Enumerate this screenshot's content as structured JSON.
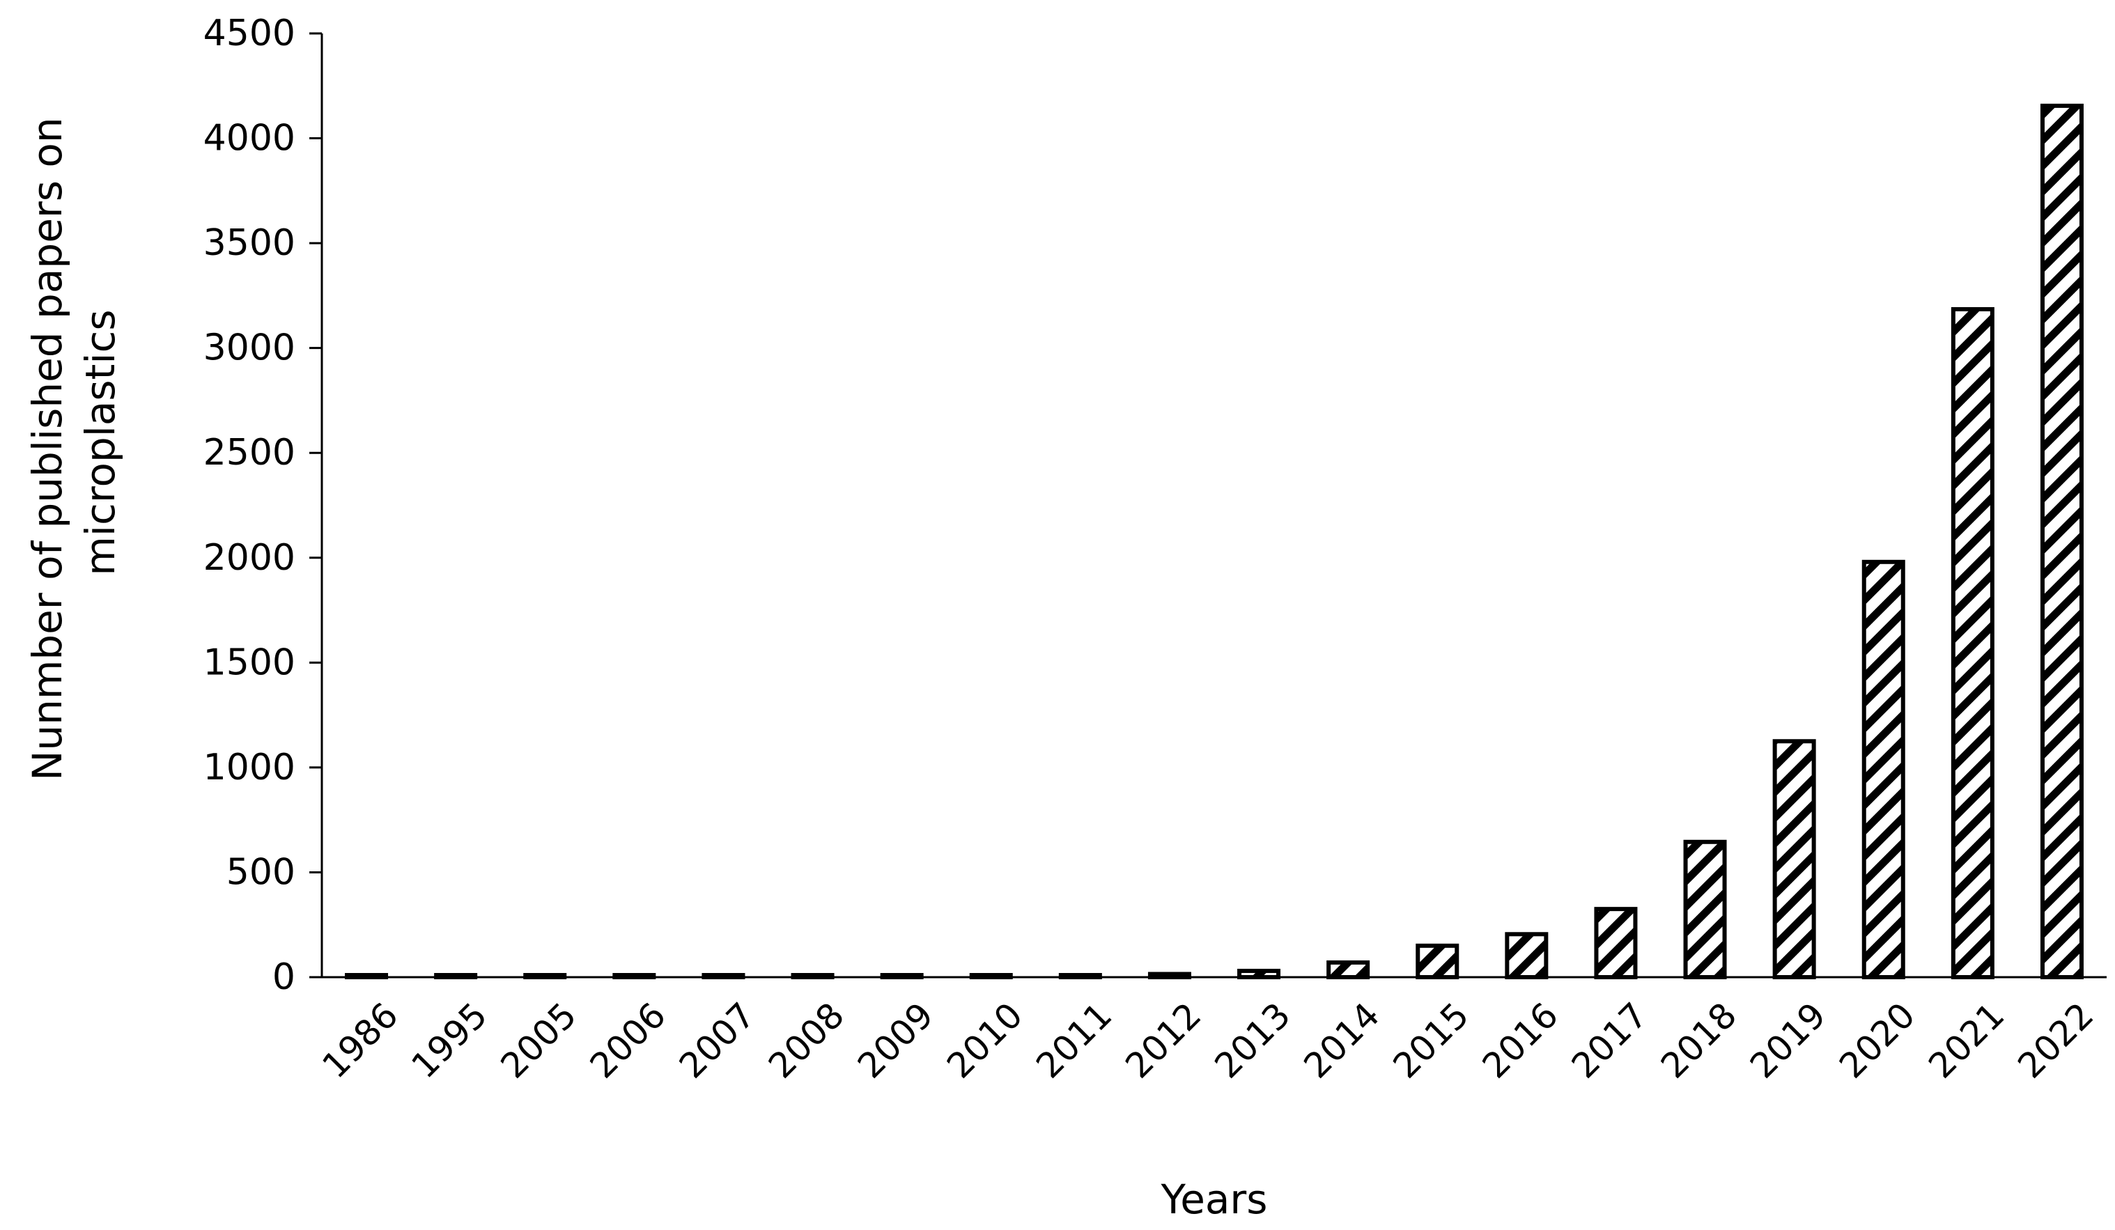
{
  "chart_data": {
    "type": "bar",
    "title": "",
    "xlabel": "Years",
    "ylabel_lines": [
      "Nunmber of published papers on",
      "microplastics"
    ],
    "categories": [
      "1986",
      "1995",
      "2005",
      "2006",
      "2007",
      "2008",
      "2009",
      "2010",
      "2011",
      "2012",
      "2013",
      "2014",
      "2015",
      "2016",
      "2017",
      "2018",
      "2019",
      "2020",
      "2021",
      "2022"
    ],
    "values": [
      1,
      1,
      1,
      1,
      1,
      1,
      1,
      1,
      5,
      15,
      30,
      70,
      150,
      205,
      325,
      645,
      1125,
      1980,
      3185,
      4155
    ],
    "ylim": [
      0,
      4500
    ],
    "yticks": [
      0,
      500,
      1000,
      1500,
      2000,
      2500,
      3000,
      3500,
      4000,
      4500
    ],
    "grid": false,
    "legend": "none",
    "bar_fill": "diagonal-hatch",
    "colors": {
      "bar_stroke": "#000000",
      "hatch": "#000000",
      "axis": "#000000",
      "background": "#ffffff"
    }
  }
}
